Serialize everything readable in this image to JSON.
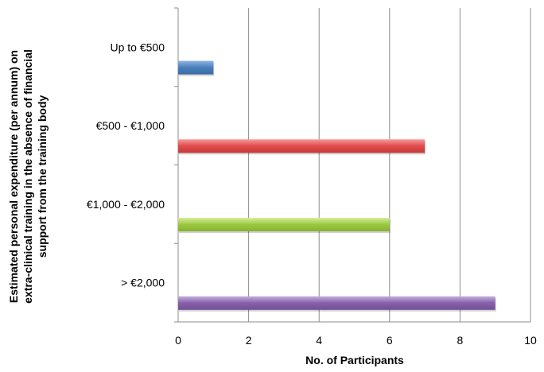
{
  "chart_data": {
    "type": "bar",
    "orientation": "horizontal",
    "categories": [
      "Up to €500",
      "€500 - €1,000",
      "€1,000 - €2,000",
      "> €2,000"
    ],
    "values": [
      1,
      7,
      6,
      9
    ],
    "colors": [
      "#4a7ebb",
      "#e04b4b",
      "#9bc83f",
      "#8660a8"
    ],
    "xlabel": "No. of Participants",
    "ylabel": [
      "Estimated personal expenditure (per annum) on",
      "extra-clinical training in the absence of financial",
      "support from the training body"
    ],
    "xlim": [
      0,
      10
    ],
    "xticks": [
      0,
      2,
      4,
      6,
      8,
      10
    ],
    "grid": "vertical",
    "legend": "none"
  }
}
